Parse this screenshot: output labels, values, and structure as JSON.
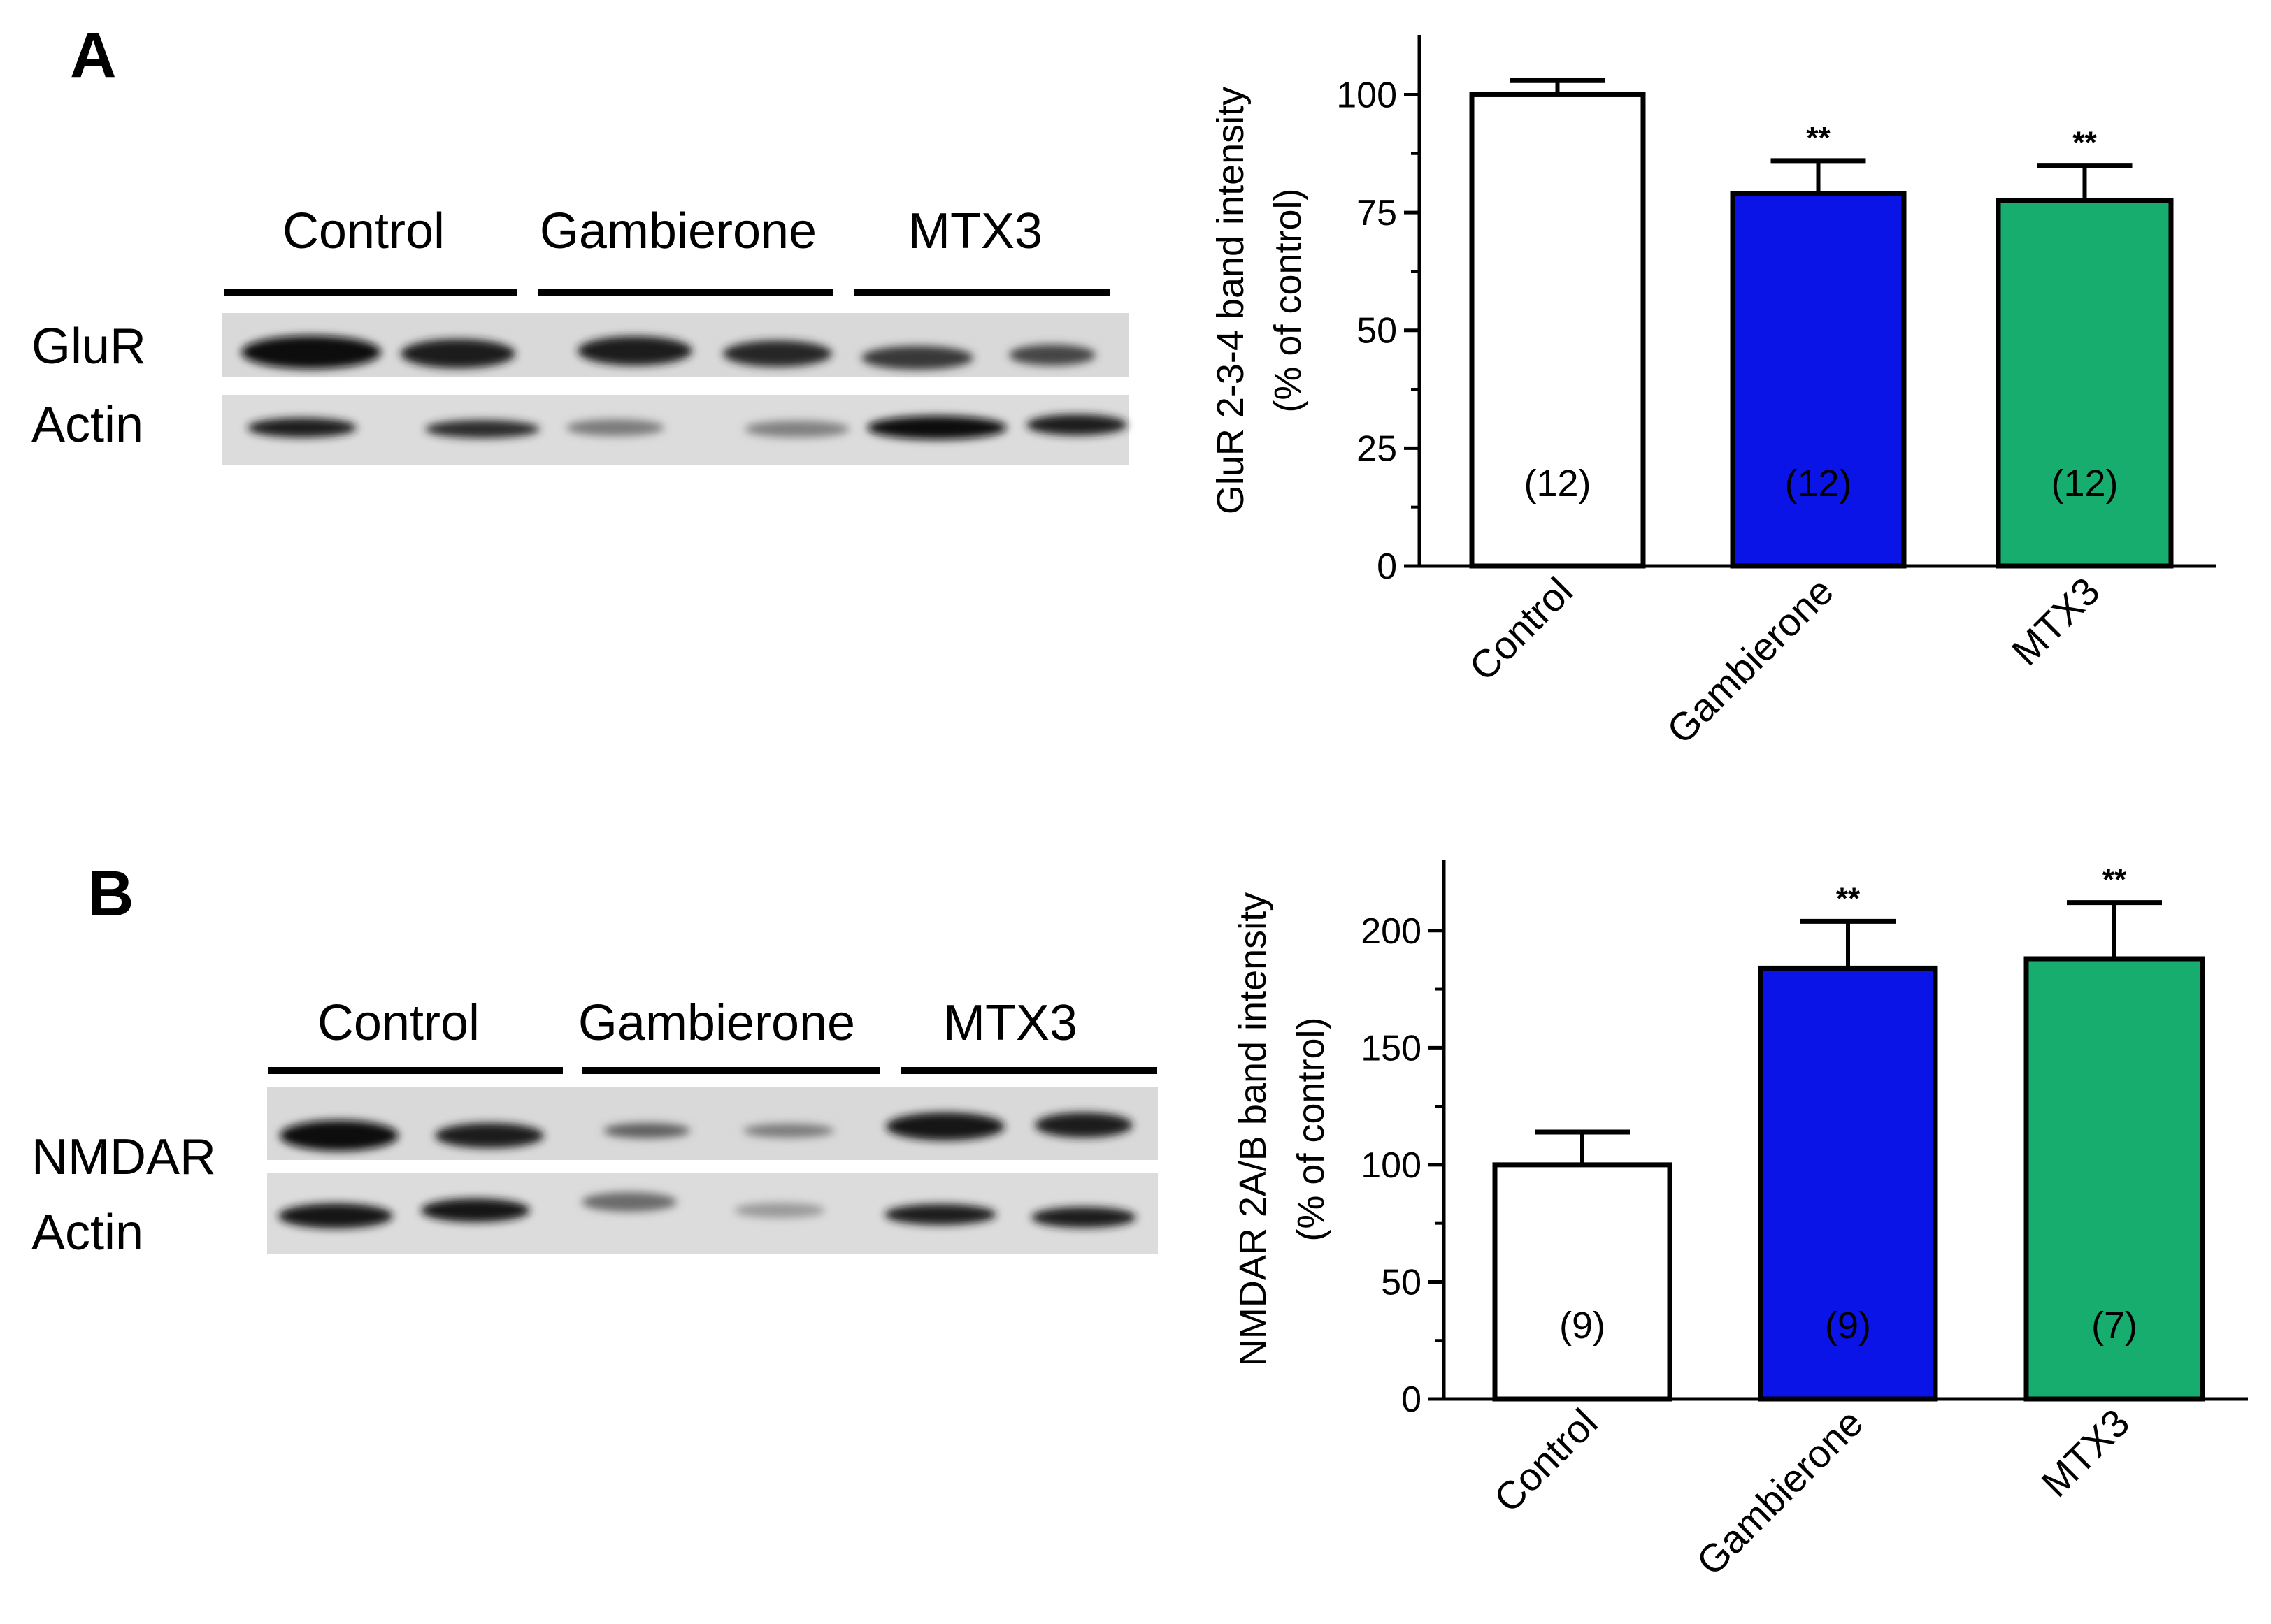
{
  "panels": [
    {
      "letter": "A",
      "blot": {
        "groups": [
          "Control",
          "Gambierone",
          "MTX3"
        ],
        "rows": [
          "GluR",
          "Actin"
        ]
      },
      "chart_data": {
        "type": "bar",
        "categories": [
          "Control",
          "Gambierone",
          "MTX3"
        ],
        "values": [
          100,
          79,
          77.5
        ],
        "errors": [
          3,
          7,
          7.5
        ],
        "n": [
          "(12)",
          "(12)",
          "(12)"
        ],
        "significance": [
          "",
          "**",
          "**"
        ],
        "colors": [
          "#ffffff",
          "#0a14e6",
          "#16ad6e"
        ],
        "ylabel": "GluR 2-3-4 band intensity",
        "ylabel2": "(% of control)",
        "yticks": [
          0,
          25,
          50,
          75,
          100
        ],
        "ylim": [
          0,
          110
        ],
        "legend": "none",
        "grid": false
      }
    },
    {
      "letter": "B",
      "blot": {
        "groups": [
          "Control",
          "Gambierone",
          "MTX3"
        ],
        "rows": [
          "NMDAR",
          "Actin"
        ]
      },
      "chart_data": {
        "type": "bar",
        "categories": [
          "Control",
          "Gambierone",
          "MTX3"
        ],
        "values": [
          100,
          184,
          188
        ],
        "errors": [
          14,
          20,
          24
        ],
        "n": [
          "(9)",
          "(9)",
          "(7)"
        ],
        "significance": [
          "",
          "**",
          "**"
        ],
        "colors": [
          "#ffffff",
          "#0a14e6",
          "#16ad6e"
        ],
        "ylabel": "NMDAR 2A/B band intensity",
        "ylabel2": "(% of control)",
        "yticks": [
          0,
          50,
          100,
          150,
          200
        ],
        "ylim": [
          0,
          225
        ],
        "legend": "none",
        "grid": false
      }
    }
  ]
}
